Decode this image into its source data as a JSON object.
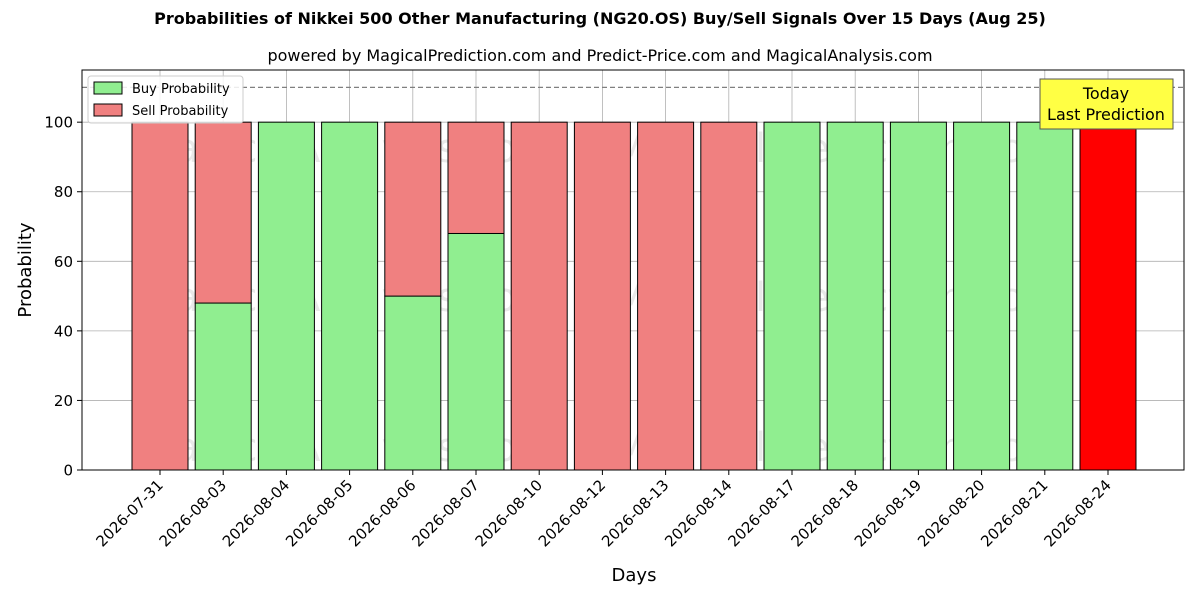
{
  "chart_data": {
    "type": "bar",
    "stacked": true,
    "title": "Probabilities of Nikkei 500 Other Manufacturing (NG20.OS) Buy/Sell Signals Over 15 Days (Aug 25)",
    "subtitle": "powered by MagicalPrediction.com and Predict-Price.com and MagicalAnalysis.com",
    "xlabel": "Days",
    "ylabel": "Probability",
    "ylim": [
      0,
      115
    ],
    "yticks": [
      0,
      20,
      40,
      60,
      80,
      100
    ],
    "grid": true,
    "legend_position": "top-left",
    "reference_line": 110,
    "categories": [
      "2026-07-31",
      "2026-08-03",
      "2026-08-04",
      "2026-08-05",
      "2026-08-06",
      "2026-08-07",
      "2026-08-10",
      "2026-08-12",
      "2026-08-13",
      "2026-08-14",
      "2026-08-17",
      "2026-08-18",
      "2026-08-19",
      "2026-08-20",
      "2026-08-21",
      "2026-08-24"
    ],
    "series": [
      {
        "name": "Buy Probability",
        "color": "#90ee90",
        "values": [
          0,
          48,
          100,
          100,
          50,
          68,
          0,
          0,
          0,
          0,
          100,
          100,
          100,
          100,
          100,
          0
        ]
      },
      {
        "name": "Sell Probability",
        "color": "#f08080",
        "values": [
          100,
          52,
          0,
          0,
          50,
          32,
          100,
          100,
          100,
          100,
          0,
          0,
          0,
          0,
          0,
          100
        ]
      }
    ],
    "highlight": {
      "category": "2026-08-24",
      "color": "#ff0000"
    },
    "annotation": {
      "line1": "Today",
      "line2": "Last Prediction",
      "color": "#ffff44"
    },
    "watermarks": [
      "MagicalAnalysis.com",
      "MagicalPrediction.com"
    ]
  }
}
